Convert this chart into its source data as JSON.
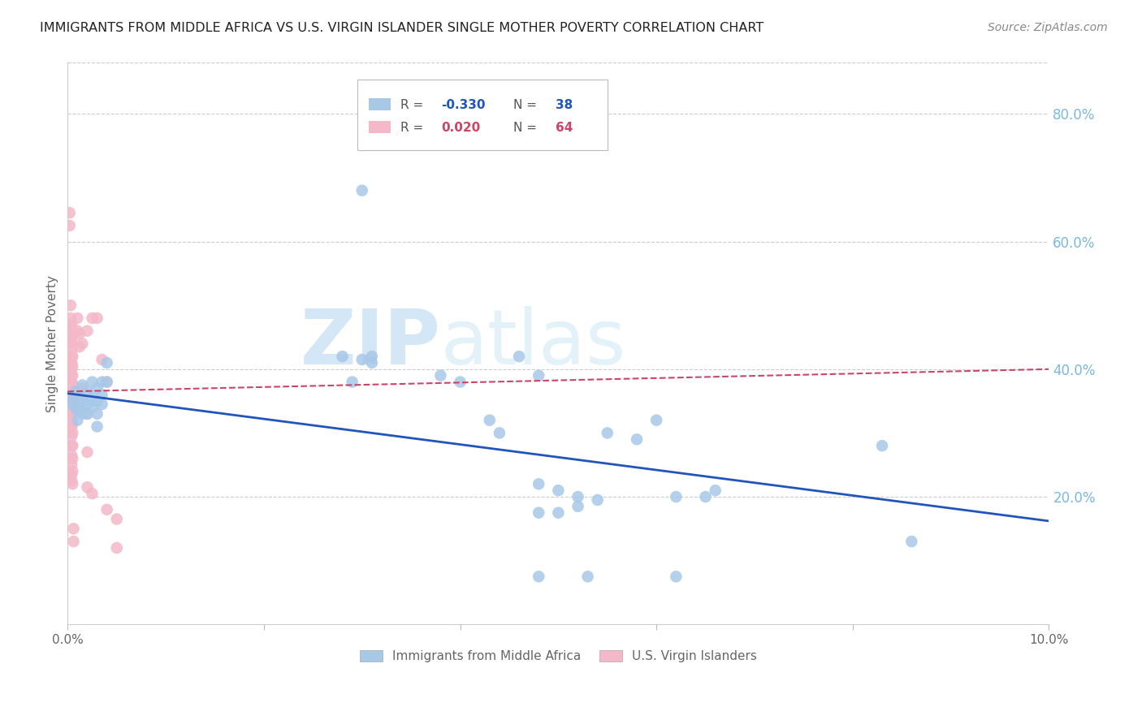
{
  "title": "IMMIGRANTS FROM MIDDLE AFRICA VS U.S. VIRGIN ISLANDER SINGLE MOTHER POVERTY CORRELATION CHART",
  "source": "Source: ZipAtlas.com",
  "ylabel": "Single Mother Poverty",
  "right_yticks": [
    0.2,
    0.4,
    0.6,
    0.8
  ],
  "right_ytick_labels": [
    "20.0%",
    "40.0%",
    "60.0%",
    "80.0%"
  ],
  "xlim": [
    0.0,
    0.1
  ],
  "ylim": [
    0.0,
    0.88
  ],
  "blue_color": "#a8c8e8",
  "pink_color": "#f4b8c8",
  "blue_line_color": "#2255bb",
  "pink_line_color": "#cc4466",
  "watermark_zip": "ZIP",
  "watermark_atlas": "atlas",
  "legend_blue_label": "Immigrants from Middle Africa",
  "legend_pink_label": "U.S. Virgin Islanders",
  "blue_trend_x": [
    0.0,
    0.1
  ],
  "blue_trend_y": [
    0.362,
    0.162
  ],
  "pink_trend_x": [
    0.0,
    0.1
  ],
  "pink_trend_y": [
    0.365,
    0.4
  ],
  "blue_points": [
    [
      0.0005,
      0.355
    ],
    [
      0.0005,
      0.345
    ],
    [
      0.0008,
      0.365
    ],
    [
      0.0008,
      0.34
    ],
    [
      0.001,
      0.36
    ],
    [
      0.001,
      0.35
    ],
    [
      0.001,
      0.335
    ],
    [
      0.001,
      0.32
    ],
    [
      0.0012,
      0.355
    ],
    [
      0.0012,
      0.34
    ],
    [
      0.0015,
      0.375
    ],
    [
      0.0015,
      0.35
    ],
    [
      0.0015,
      0.33
    ],
    [
      0.002,
      0.365
    ],
    [
      0.002,
      0.345
    ],
    [
      0.002,
      0.33
    ],
    [
      0.0025,
      0.38
    ],
    [
      0.0025,
      0.355
    ],
    [
      0.0025,
      0.34
    ],
    [
      0.003,
      0.37
    ],
    [
      0.003,
      0.35
    ],
    [
      0.003,
      0.33
    ],
    [
      0.003,
      0.31
    ],
    [
      0.0035,
      0.38
    ],
    [
      0.0035,
      0.36
    ],
    [
      0.0035,
      0.345
    ],
    [
      0.004,
      0.41
    ],
    [
      0.004,
      0.38
    ],
    [
      0.028,
      0.42
    ],
    [
      0.029,
      0.38
    ],
    [
      0.03,
      0.415
    ],
    [
      0.031,
      0.42
    ],
    [
      0.031,
      0.41
    ],
    [
      0.038,
      0.39
    ],
    [
      0.04,
      0.38
    ],
    [
      0.043,
      0.32
    ],
    [
      0.044,
      0.3
    ],
    [
      0.046,
      0.42
    ],
    [
      0.048,
      0.39
    ],
    [
      0.048,
      0.22
    ],
    [
      0.05,
      0.21
    ],
    [
      0.052,
      0.2
    ],
    [
      0.055,
      0.3
    ],
    [
      0.058,
      0.29
    ],
    [
      0.06,
      0.32
    ],
    [
      0.062,
      0.2
    ],
    [
      0.065,
      0.2
    ],
    [
      0.066,
      0.21
    ],
    [
      0.03,
      0.68
    ],
    [
      0.083,
      0.28
    ],
    [
      0.086,
      0.13
    ],
    [
      0.048,
      0.075
    ],
    [
      0.053,
      0.075
    ],
    [
      0.062,
      0.075
    ],
    [
      0.048,
      0.175
    ],
    [
      0.05,
      0.175
    ],
    [
      0.052,
      0.185
    ],
    [
      0.054,
      0.195
    ]
  ],
  "pink_points": [
    [
      0.0002,
      0.645
    ],
    [
      0.0002,
      0.625
    ],
    [
      0.0003,
      0.5
    ],
    [
      0.0003,
      0.48
    ],
    [
      0.0003,
      0.465
    ],
    [
      0.0003,
      0.455
    ],
    [
      0.0004,
      0.47
    ],
    [
      0.0004,
      0.45
    ],
    [
      0.0004,
      0.44
    ],
    [
      0.0004,
      0.43
    ],
    [
      0.0004,
      0.42
    ],
    [
      0.0004,
      0.41
    ],
    [
      0.0004,
      0.4
    ],
    [
      0.0004,
      0.39
    ],
    [
      0.0004,
      0.38
    ],
    [
      0.0004,
      0.37
    ],
    [
      0.0004,
      0.36
    ],
    [
      0.0004,
      0.35
    ],
    [
      0.0004,
      0.34
    ],
    [
      0.0004,
      0.33
    ],
    [
      0.0004,
      0.32
    ],
    [
      0.0004,
      0.31
    ],
    [
      0.0004,
      0.295
    ],
    [
      0.0004,
      0.28
    ],
    [
      0.0004,
      0.265
    ],
    [
      0.0004,
      0.25
    ],
    [
      0.0004,
      0.235
    ],
    [
      0.0004,
      0.225
    ],
    [
      0.0005,
      0.46
    ],
    [
      0.0005,
      0.44
    ],
    [
      0.0005,
      0.42
    ],
    [
      0.0005,
      0.405
    ],
    [
      0.0005,
      0.39
    ],
    [
      0.0005,
      0.375
    ],
    [
      0.0005,
      0.36
    ],
    [
      0.0005,
      0.345
    ],
    [
      0.0005,
      0.33
    ],
    [
      0.0005,
      0.315
    ],
    [
      0.0005,
      0.3
    ],
    [
      0.0005,
      0.28
    ],
    [
      0.0005,
      0.26
    ],
    [
      0.0005,
      0.24
    ],
    [
      0.0005,
      0.22
    ],
    [
      0.0006,
      0.15
    ],
    [
      0.0006,
      0.13
    ],
    [
      0.001,
      0.48
    ],
    [
      0.001,
      0.46
    ],
    [
      0.0012,
      0.455
    ],
    [
      0.0012,
      0.435
    ],
    [
      0.0015,
      0.44
    ],
    [
      0.0015,
      0.37
    ],
    [
      0.002,
      0.46
    ],
    [
      0.002,
      0.33
    ],
    [
      0.002,
      0.27
    ],
    [
      0.002,
      0.215
    ],
    [
      0.0025,
      0.48
    ],
    [
      0.0025,
      0.205
    ],
    [
      0.003,
      0.48
    ],
    [
      0.0035,
      0.415
    ],
    [
      0.004,
      0.38
    ],
    [
      0.004,
      0.18
    ],
    [
      0.005,
      0.165
    ],
    [
      0.005,
      0.12
    ]
  ]
}
